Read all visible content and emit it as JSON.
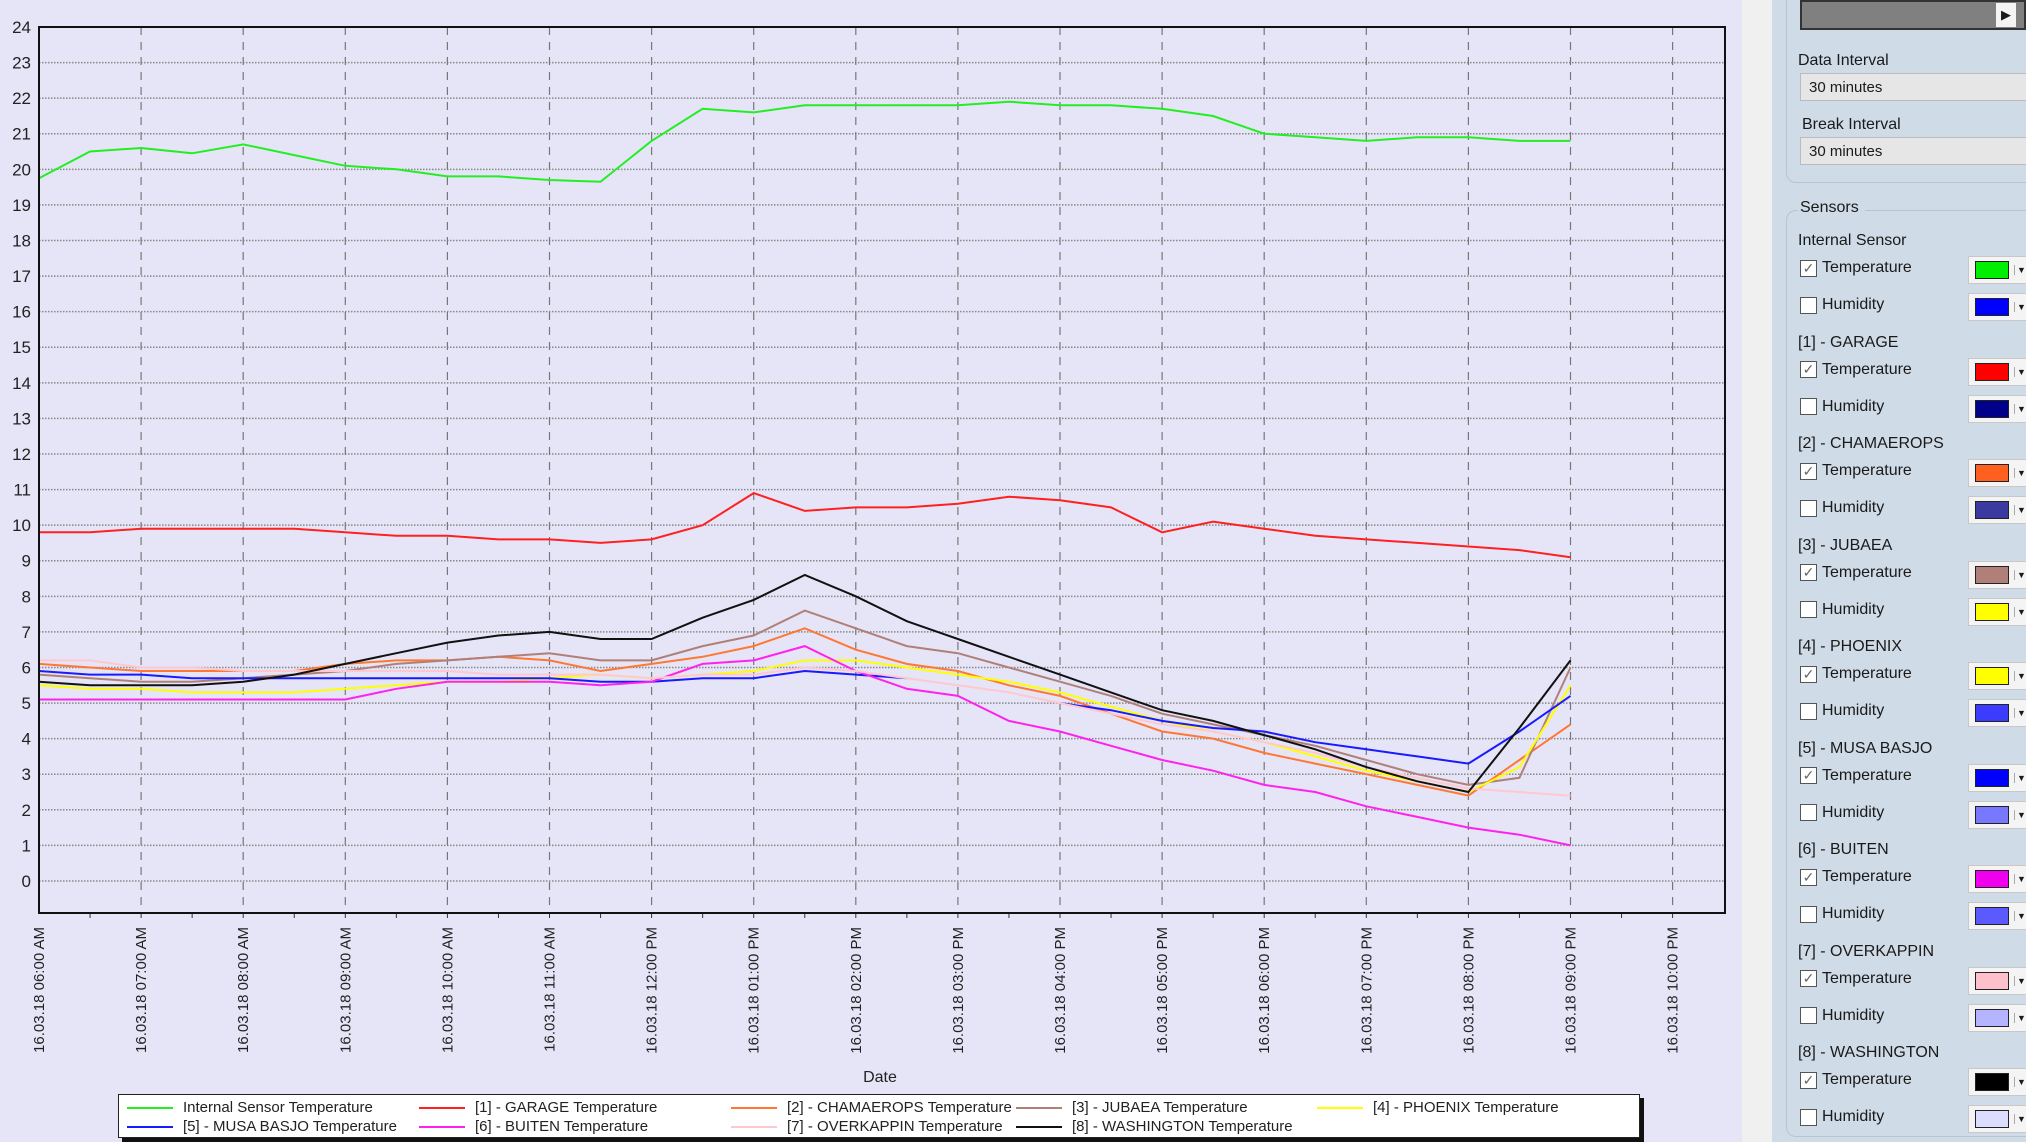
{
  "chart_data": {
    "type": "line",
    "xlabel": "Date",
    "ylabel": "",
    "ylim": [
      -0.9,
      24
    ],
    "yticks": [
      0,
      1,
      2,
      3,
      4,
      5,
      6,
      7,
      8,
      9,
      10,
      11,
      12,
      13,
      14,
      15,
      16,
      17,
      18,
      19,
      20,
      21,
      22,
      23,
      24
    ],
    "xlim_hours": [
      6,
      22.5
    ],
    "grid": true,
    "legend_placement": "bottom",
    "x": [
      "06:00",
      "06:30",
      "07:00",
      "07:30",
      "08:00",
      "08:30",
      "09:00",
      "09:30",
      "10:00",
      "10:30",
      "11:00",
      "11:30",
      "12:00",
      "12:30",
      "13:00",
      "13:30",
      "14:00",
      "14:30",
      "15:00",
      "15:30",
      "16:00",
      "16:30",
      "17:00",
      "17:30",
      "18:00",
      "18:30",
      "19:00",
      "19:30",
      "20:00",
      "20:30",
      "21:00"
    ],
    "xtick_labels": [
      "16.03.18 06:00 AM",
      "16.03.18 07:00 AM",
      "16.03.18 08:00 AM",
      "16.03.18 09:00 AM",
      "16.03.18 10:00 AM",
      "16.03.18 11:00 AM",
      "16.03.18 12:00 PM",
      "16.03.18 01:00 PM",
      "16.03.18 02:00 PM",
      "16.03.18 03:00 PM",
      "16.03.18 04:00 PM",
      "16.03.18 05:00 PM",
      "16.03.18 06:00 PM",
      "16.03.18 07:00 PM",
      "16.03.18 08:00 PM",
      "16.03.18 09:00 PM",
      "16.03.18 10:00 PM"
    ],
    "series": [
      {
        "name": "Internal Sensor Temperature",
        "color": "#22ee22",
        "values": [
          19.75,
          20.5,
          20.6,
          20.45,
          20.7,
          20.4,
          20.1,
          20.0,
          19.8,
          19.8,
          19.7,
          19.65,
          20.8,
          21.7,
          21.6,
          21.8,
          21.8,
          21.8,
          21.8,
          21.9,
          21.8,
          21.8,
          21.7,
          21.5,
          21.0,
          20.9,
          20.8,
          20.9,
          20.9,
          20.8,
          20.8
        ]
      },
      {
        "name": "[1] - GARAGE Temperature",
        "color": "#ff2020",
        "values": [
          9.8,
          9.8,
          9.9,
          9.9,
          9.9,
          9.9,
          9.8,
          9.7,
          9.7,
          9.6,
          9.6,
          9.5,
          9.6,
          10.0,
          10.9,
          10.4,
          10.5,
          10.5,
          10.6,
          10.8,
          10.7,
          10.5,
          9.8,
          10.1,
          9.9,
          9.7,
          9.6,
          9.5,
          9.4,
          9.3,
          9.1
        ]
      },
      {
        "name": "[2] - CHAMAEROPS Temperature",
        "color": "#ff7733",
        "values": [
          6.1,
          6.0,
          5.9,
          5.9,
          5.9,
          5.9,
          6.1,
          6.2,
          6.2,
          6.3,
          6.2,
          5.9,
          6.1,
          6.3,
          6.6,
          7.1,
          6.5,
          6.1,
          5.9,
          5.5,
          5.2,
          4.7,
          4.2,
          4.0,
          3.6,
          3.3,
          3.0,
          2.7,
          2.4,
          3.4,
          4.4
        ]
      },
      {
        "name": "[3] - JUBAEA Temperature",
        "color": "#b08078",
        "values": [
          5.8,
          5.7,
          5.6,
          5.6,
          5.7,
          5.8,
          5.9,
          6.1,
          6.2,
          6.3,
          6.4,
          6.2,
          6.2,
          6.6,
          6.9,
          7.6,
          7.1,
          6.6,
          6.4,
          6.0,
          5.6,
          5.2,
          4.7,
          4.4,
          4.1,
          3.8,
          3.4,
          3.0,
          2.7,
          2.9,
          6.0
        ]
      },
      {
        "name": "[4] - PHOENIX Temperature",
        "color": "#ffff00",
        "values": [
          5.5,
          5.4,
          5.4,
          5.3,
          5.3,
          5.3,
          5.4,
          5.5,
          5.6,
          5.6,
          5.7,
          5.8,
          5.7,
          5.8,
          5.9,
          6.2,
          6.2,
          6.0,
          5.8,
          5.6,
          5.3,
          4.9,
          4.5,
          4.2,
          3.9,
          3.5,
          3.1,
          2.8,
          2.5,
          3.2,
          5.5
        ]
      },
      {
        "name": "[5] - MUSA BASJO Temperature",
        "color": "#1a1aff",
        "values": [
          5.9,
          5.8,
          5.8,
          5.7,
          5.7,
          5.7,
          5.7,
          5.7,
          5.7,
          5.7,
          5.7,
          5.6,
          5.6,
          5.7,
          5.7,
          5.9,
          5.8,
          5.7,
          null,
          null,
          5.0,
          4.8,
          4.5,
          4.3,
          4.2,
          3.9,
          3.7,
          3.5,
          3.3,
          4.2,
          5.2
        ]
      },
      {
        "name": "[6] - BUITEN Temperature",
        "color": "#ff22ee",
        "values": [
          5.1,
          5.1,
          5.1,
          5.1,
          5.1,
          5.1,
          5.1,
          5.4,
          5.6,
          5.6,
          5.6,
          5.5,
          5.6,
          6.1,
          6.2,
          6.6,
          5.9,
          5.4,
          5.2,
          4.5,
          4.2,
          3.8,
          3.4,
          3.1,
          2.7,
          2.5,
          2.1,
          1.8,
          1.5,
          1.3,
          1.0
        ]
      },
      {
        "name": "[7] - OVERKAPPIN Temperature",
        "color": "#ffc8d0",
        "values": [
          6.2,
          6.2,
          6.0,
          6.0,
          5.9,
          5.9,
          5.9,
          5.9,
          5.9,
          5.8,
          5.8,
          5.8,
          5.7,
          5.8,
          5.8,
          6.0,
          5.9,
          5.7,
          5.5,
          5.3,
          5.0,
          4.7,
          4.4,
          4.2,
          3.9,
          3.6,
          3.2,
          2.9,
          2.6,
          2.5,
          2.4
        ]
      },
      {
        "name": "[8] - WASHINGTON Temperature",
        "color": "#111111",
        "values": [
          5.6,
          5.5,
          5.5,
          5.5,
          5.6,
          5.8,
          6.1,
          6.4,
          6.7,
          6.9,
          7.0,
          6.8,
          6.8,
          7.4,
          7.9,
          8.6,
          8.0,
          7.3,
          6.8,
          6.3,
          5.8,
          5.3,
          4.8,
          4.5,
          4.1,
          3.7,
          3.2,
          2.8,
          2.5,
          4.3,
          6.2
        ]
      }
    ]
  },
  "panel": {
    "data_interval_label": "Data Interval",
    "data_interval_value": "30 minutes",
    "break_interval_label": "Break Interval",
    "break_interval_value": "30 minutes",
    "sensors_title": "Sensors",
    "groups": [
      {
        "name": "Internal Sensor",
        "temp_label": "Temperature",
        "temp_checked": true,
        "temp_color": "#00ee00",
        "hum_label": "Humidity",
        "hum_checked": false,
        "hum_color": "#0000ff"
      },
      {
        "name": "[1] - GARAGE",
        "temp_label": "Temperature",
        "temp_checked": true,
        "temp_color": "#ff0000",
        "hum_label": "Humidity",
        "hum_checked": false,
        "hum_color": "#00008b"
      },
      {
        "name": "[2] - CHAMAEROPS",
        "temp_label": "Temperature",
        "temp_checked": true,
        "temp_color": "#ff6020",
        "hum_label": "Humidity",
        "hum_checked": false,
        "hum_color": "#3a3aa0"
      },
      {
        "name": "[3] - JUBAEA",
        "temp_label": "Temperature",
        "temp_checked": true,
        "temp_color": "#b08078",
        "hum_label": "Humidity",
        "hum_checked": false,
        "hum_color": "#ffff00"
      },
      {
        "name": "[4] - PHOENIX",
        "temp_label": "Temperature",
        "temp_checked": true,
        "temp_color": "#ffff00",
        "hum_label": "Humidity",
        "hum_checked": false,
        "hum_color": "#3c3cff"
      },
      {
        "name": "[5] - MUSA BASJO",
        "temp_label": "Temperature",
        "temp_checked": true,
        "temp_color": "#0000ff",
        "hum_label": "Humidity",
        "hum_checked": false,
        "hum_color": "#7878ff"
      },
      {
        "name": "[6] - BUITEN",
        "temp_label": "Temperature",
        "temp_checked": true,
        "temp_color": "#ee00ee",
        "hum_label": "Humidity",
        "hum_checked": false,
        "hum_color": "#5a5aff"
      },
      {
        "name": "[7] - OVERKAPPIN",
        "temp_label": "Temperature",
        "temp_checked": true,
        "temp_color": "#ffc0cb",
        "hum_label": "Humidity",
        "hum_checked": false,
        "hum_color": "#b4b4ff"
      },
      {
        "name": "[8] - WASHINGTON",
        "temp_label": "Temperature",
        "temp_checked": true,
        "temp_color": "#000000",
        "hum_label": "Humidity",
        "hum_checked": false,
        "hum_color": "#dcdcff"
      }
    ]
  }
}
